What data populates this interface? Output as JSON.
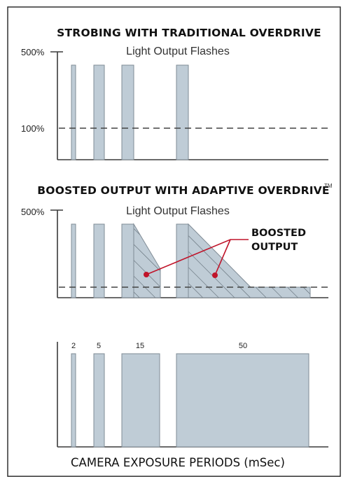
{
  "panel1": {
    "title": "STROBING WITH TRADITIONAL OVERDRIVE",
    "subtitle": "Light Output Flashes",
    "y_label_high": "500%",
    "y_label_low": "100%"
  },
  "panel2": {
    "title": "BOOSTED OUTPUT WITH ADAPTIVE OVERDRIVE",
    "trademark": "TM",
    "subtitle": "Light Output Flashes",
    "y_label_high": "500%",
    "callout_line1": "BOOSTED",
    "callout_line2": "OUTPUT"
  },
  "panel3": {
    "period_labels": [
      "2",
      "5",
      "15",
      "50"
    ],
    "title": "CAMERA EXPOSURE PERIODS (mSec)"
  },
  "colors": {
    "bar_fill": "#bfccd6",
    "bar_stroke": "#7f8b95",
    "callout_red": "#c0142a"
  }
}
